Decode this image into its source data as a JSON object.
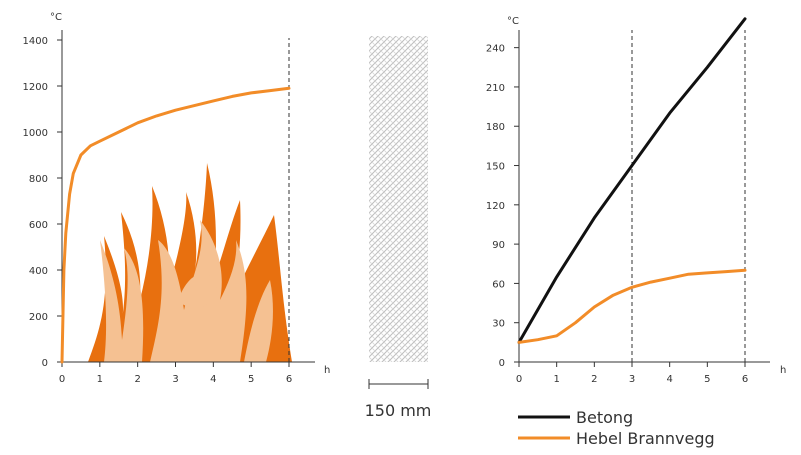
{
  "colors": {
    "orange": "#f28c28",
    "flame_dark": "#e8700f",
    "flame_light": "#f5c192",
    "betong": "#111111",
    "axis": "#333333",
    "wall_hatch": "#bfbfbf"
  },
  "chart_data": [
    {
      "type": "line",
      "title": "",
      "xlabel": "h",
      "ylabel": "°C",
      "xlim": [
        0,
        6
      ],
      "ylim": [
        0,
        1400
      ],
      "xticks": [
        "0",
        "1",
        "2",
        "3",
        "4",
        "5",
        "6"
      ],
      "yticks": [
        "0",
        "200",
        "400",
        "600",
        "800",
        "1000",
        "1200",
        "1400"
      ],
      "dashed_x": [
        6
      ],
      "decoration": "flames",
      "series": [
        {
          "color": "#f28c28",
          "x": [
            0,
            0.05,
            0.1,
            0.2,
            0.3,
            0.5,
            0.75,
            1,
            1.5,
            2,
            2.5,
            3,
            3.5,
            4,
            4.5,
            5,
            5.5,
            6
          ],
          "y": [
            0,
            400,
            560,
            730,
            820,
            900,
            940,
            960,
            1000,
            1040,
            1070,
            1095,
            1115,
            1135,
            1155,
            1170,
            1180,
            1190
          ]
        }
      ]
    },
    {
      "type": "line",
      "title": "",
      "xlabel": "h",
      "ylabel": "°C",
      "xlim": [
        0,
        6
      ],
      "ylim": [
        0,
        255
      ],
      "xticks": [
        "0",
        "1",
        "2",
        "3",
        "4",
        "5",
        "6"
      ],
      "yticks": [
        "0",
        "30",
        "60",
        "90",
        "120",
        "150",
        "180",
        "210",
        "240"
      ],
      "dashed_x": [
        3,
        6
      ],
      "series": [
        {
          "name": "Betong",
          "color": "#111111",
          "x": [
            0,
            1,
            2,
            3,
            4,
            5,
            6
          ],
          "y": [
            15,
            65,
            110,
            150,
            190,
            225,
            262
          ]
        },
        {
          "name": "Hebel Brannvegg",
          "color": "#f28c28",
          "x": [
            0,
            0.5,
            1,
            1.5,
            2,
            2.5,
            3,
            3.5,
            4,
            4.5,
            5,
            5.5,
            6
          ],
          "y": [
            15,
            17,
            20,
            30,
            42,
            51,
            57,
            61,
            64,
            67,
            68,
            69,
            70
          ]
        }
      ]
    }
  ],
  "wall": {
    "label": "150 mm"
  },
  "legend": {
    "items": [
      {
        "label": "Betong",
        "color": "#111111"
      },
      {
        "label": "Hebel Brannvegg",
        "color": "#f28c28"
      }
    ]
  }
}
